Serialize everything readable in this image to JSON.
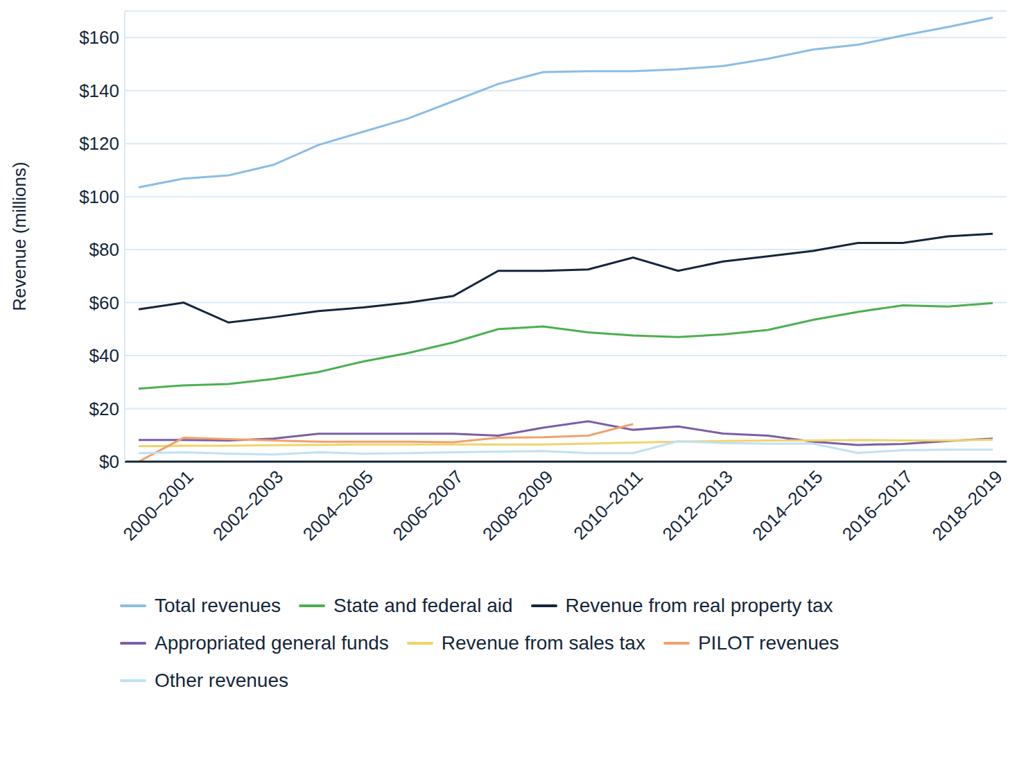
{
  "chart_data": {
    "type": "line",
    "y_label": "Revenue (millions)",
    "categories": [
      null,
      "2000–2001",
      null,
      "2002–2003",
      null,
      "2004–2005",
      null,
      "2006–2007",
      null,
      "2008–2009",
      null,
      "2010–2011",
      null,
      "2012–2013",
      null,
      "2014–2015",
      null,
      "2016–2017",
      null,
      "2018–2019"
    ],
    "ylim": [
      0,
      170
    ],
    "yticks": [
      {
        "value": 0,
        "label": "$0"
      },
      {
        "value": 20,
        "label": "$20"
      },
      {
        "value": 40,
        "label": "$40"
      },
      {
        "value": 60,
        "label": "$60"
      },
      {
        "value": 80,
        "label": "$80"
      },
      {
        "value": 100,
        "label": "$100"
      },
      {
        "value": 120,
        "label": "$120"
      },
      {
        "value": 140,
        "label": "$140"
      },
      {
        "value": 160,
        "label": "$160"
      }
    ],
    "grid": true,
    "legend": "bottom",
    "series": [
      {
        "name": "Total revenues",
        "color": "#8bbde6",
        "values": [
          103.5,
          106.8,
          108,
          112,
          119.5,
          124.5,
          129.5,
          136,
          142.5,
          147,
          147.3,
          147.3,
          148,
          149.3,
          152,
          155.5,
          157.3,
          160.8,
          164,
          167.5
        ]
      },
      {
        "name": "State and federal aid",
        "color": "#4caf50",
        "values": [
          27.5,
          28.8,
          29.3,
          31.2,
          33.8,
          37.8,
          41,
          45,
          50,
          51,
          48.8,
          47.6,
          47,
          48,
          49.7,
          53.5,
          56.5,
          59,
          58.5,
          59.8
        ]
      },
      {
        "name": "Revenue from real property tax",
        "color": "#14263a",
        "values": [
          57.5,
          60,
          52.5,
          54.5,
          56.8,
          58.2,
          60,
          62.5,
          72,
          72,
          72.5,
          77,
          72,
          75.5,
          77.5,
          79.5,
          82.5,
          82.5,
          85,
          86
        ]
      },
      {
        "name": "Appropriated general funds",
        "color": "#7b5ea7",
        "values": [
          8.2,
          8.2,
          8,
          8.7,
          10.5,
          10.5,
          10.5,
          10.5,
          9.8,
          12.8,
          15.2,
          12,
          13.3,
          10.6,
          9.8,
          7.5,
          6.3,
          6.7,
          7.8,
          8.7
        ]
      },
      {
        "name": "Revenue from sales tax",
        "color": "#f2d36b",
        "values": [
          5.8,
          6,
          6,
          6.2,
          6.3,
          6.5,
          6.5,
          6.5,
          6.5,
          6.5,
          6.8,
          7.2,
          7.5,
          7.8,
          8,
          8,
          8.2,
          8,
          8,
          8.3
        ]
      },
      {
        "name": "PILOT revenues",
        "color": "#f4a06a",
        "values": [
          0,
          9,
          8.5,
          8,
          7.5,
          7.5,
          7.5,
          7.3,
          9,
          9.2,
          9.8,
          14.2,
          null,
          null,
          null,
          null,
          null,
          null,
          null,
          null
        ]
      },
      {
        "name": "Other revenues",
        "color": "#bfe0f5",
        "values": [
          3.2,
          3.5,
          3,
          2.7,
          3.5,
          3,
          3.2,
          3.5,
          3.8,
          4,
          3.2,
          3.2,
          7.7,
          7,
          6.8,
          6.8,
          3.3,
          4.3,
          4.5,
          4.5
        ]
      }
    ]
  }
}
